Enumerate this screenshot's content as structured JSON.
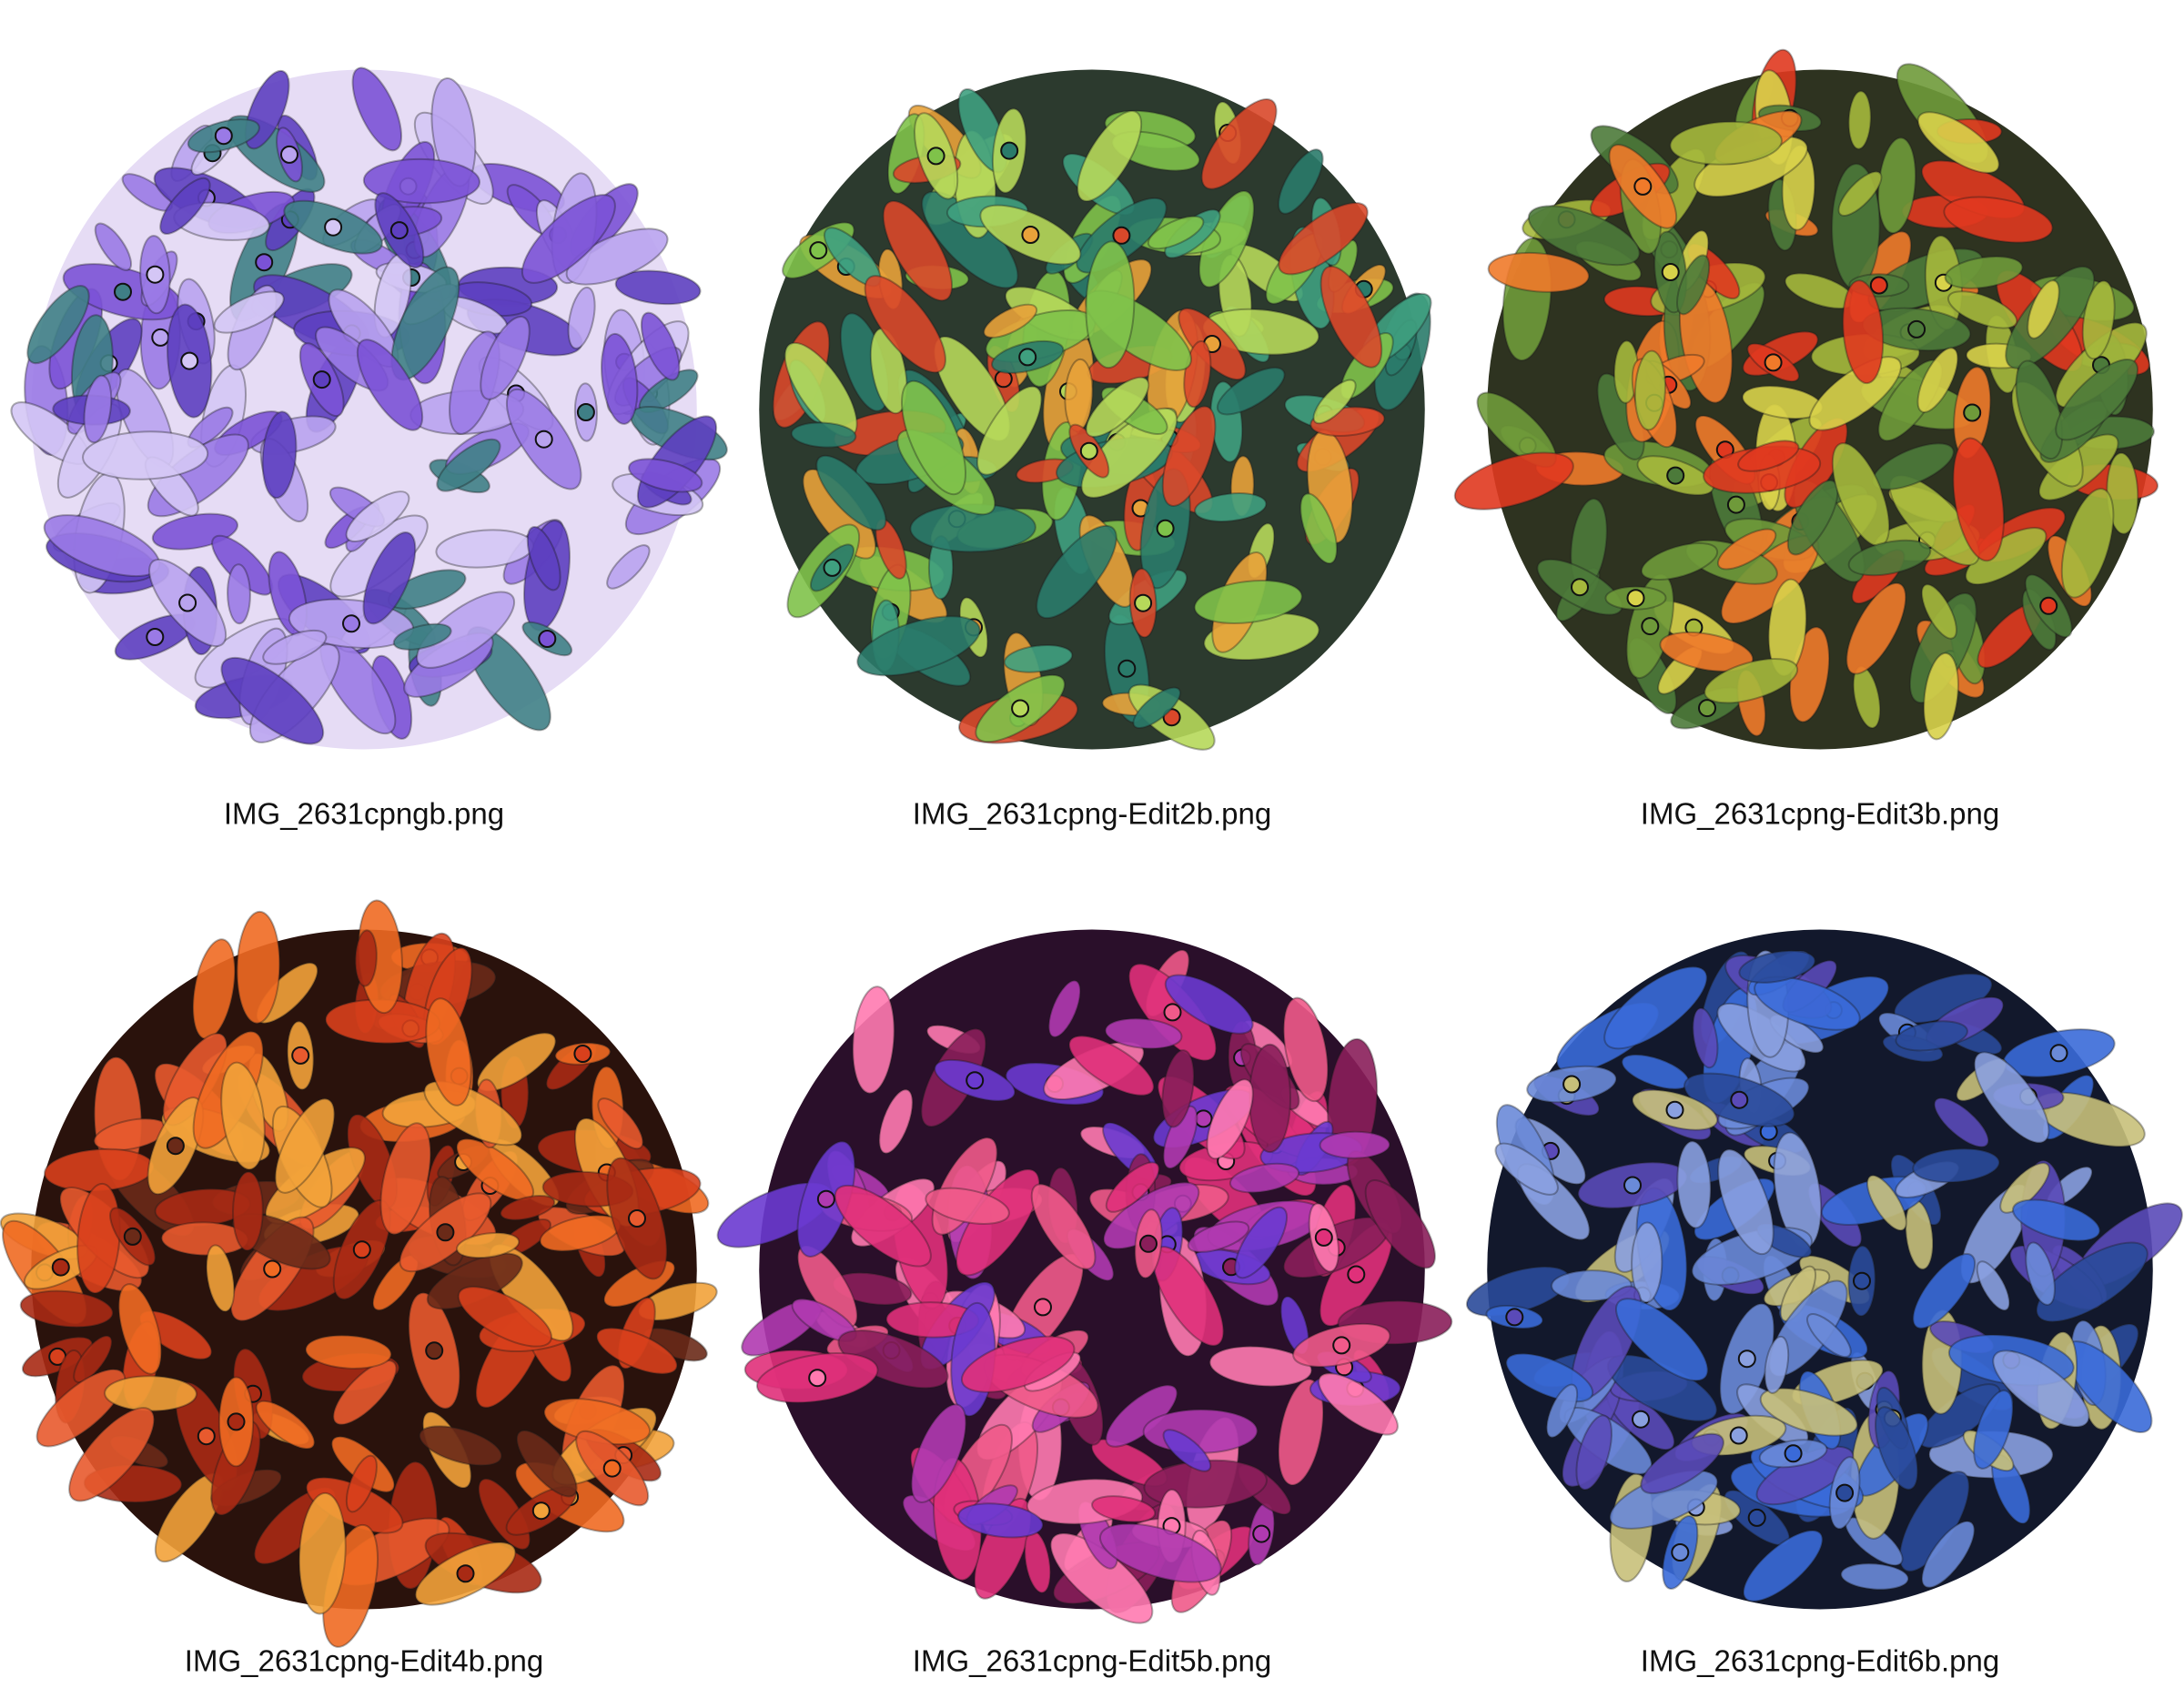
{
  "items": [
    {
      "label": "IMG_2631cpngb.png"
    },
    {
      "label": "IMG_2631cpng-Edit2b.png"
    },
    {
      "label": "IMG_2631cpng-Edit3b.png"
    },
    {
      "label": "IMG_2631cpng-Edit4b.png"
    },
    {
      "label": "IMG_2631cpng-Edit5b.png"
    },
    {
      "label": "IMG_2631cpng-Edit6b.png"
    }
  ]
}
